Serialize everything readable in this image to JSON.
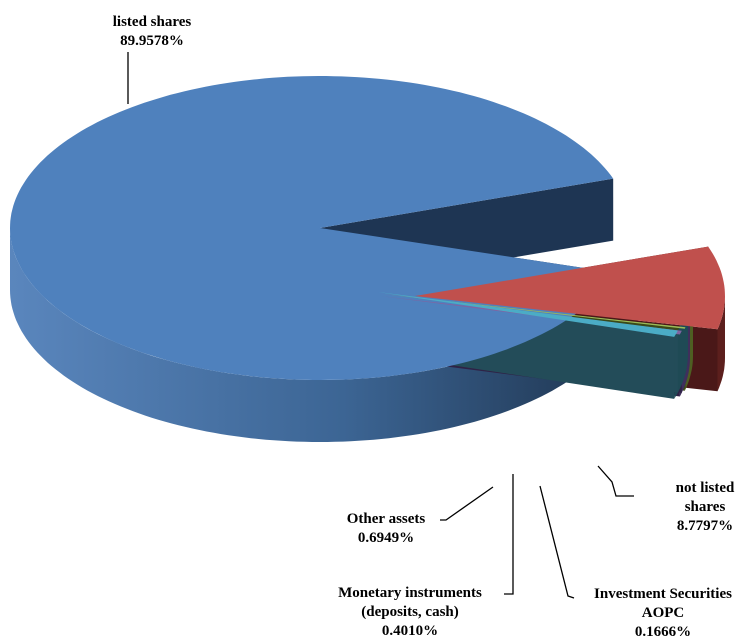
{
  "chart_data": {
    "type": "pie",
    "three_d": true,
    "exploded": true,
    "slices": [
      {
        "name": "listed shares",
        "label_lines": [
          "listed shares"
        ],
        "value_label": "89.9578%",
        "value": 89.9578,
        "color": "#4f81bd"
      },
      {
        "name": "not listed shares",
        "label_lines": [
          "not listed",
          "shares"
        ],
        "value_label": "8.7797%",
        "value": 8.7797,
        "color": "#c0504d"
      },
      {
        "name": "Investment Securities AOPC",
        "label_lines": [
          "Investment Securities",
          "AOPC"
        ],
        "value_label": "0.1666%",
        "value": 0.1666,
        "color": "#9bbb59"
      },
      {
        "name": "Monetary instruments (deposits, cash)",
        "label_lines": [
          "Monetary instruments",
          "(deposits, cash)"
        ],
        "value_label": "0.4010%",
        "value": 0.401,
        "color": "#8064a2"
      },
      {
        "name": "Other assets",
        "label_lines": [
          "Other assets"
        ],
        "value_label": "0.6949%",
        "value": 0.6949,
        "color": "#4bacc6"
      }
    ]
  }
}
